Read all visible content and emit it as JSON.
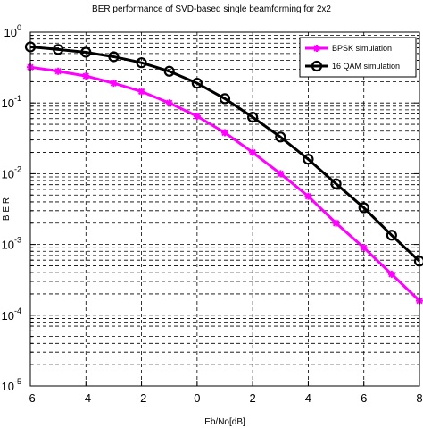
{
  "chart_data": {
    "type": "line",
    "title": "BER performance of SVD-based single beamforming for 2x2",
    "xlabel": "Eb/No[dB]",
    "ylabel": "B E R",
    "xlim": [
      -6,
      8
    ],
    "ylim": [
      1e-05,
      1
    ],
    "yscale": "log",
    "x_ticks": [
      -6,
      -4,
      -2,
      0,
      2,
      4,
      6,
      8
    ],
    "y_ticks": [
      {
        "value": 1,
        "mantissa": "10",
        "exp": "0"
      },
      {
        "value": 0.1,
        "mantissa": "10",
        "exp": "-1"
      },
      {
        "value": 0.01,
        "mantissa": "10",
        "exp": "-2"
      },
      {
        "value": 0.001,
        "mantissa": "10",
        "exp": "-3"
      },
      {
        "value": 0.0001,
        "mantissa": "10",
        "exp": "-4"
      },
      {
        "value": 1e-05,
        "mantissa": "10",
        "exp": "-5"
      }
    ],
    "grid": true,
    "legend_position": "top-right",
    "x": [
      -6,
      -5,
      -4,
      -3,
      -2,
      -1,
      0,
      1,
      2,
      3,
      4,
      5,
      6,
      7,
      8
    ],
    "series": [
      {
        "name": "BPSK simulation",
        "color": "#ff00ff",
        "marker": "asterisk",
        "values": [
          0.32,
          0.28,
          0.24,
          0.19,
          0.145,
          0.1,
          0.065,
          0.038,
          0.02,
          0.01,
          0.0048,
          0.002,
          0.0009,
          0.00038,
          0.00016
        ]
      },
      {
        "name": "16 QAM simulation",
        "color": "#000000",
        "marker": "circle",
        "values": [
          0.62,
          0.57,
          0.52,
          0.45,
          0.37,
          0.28,
          0.19,
          0.115,
          0.063,
          0.033,
          0.016,
          0.0072,
          0.0033,
          0.00135,
          0.00058
        ]
      }
    ]
  }
}
